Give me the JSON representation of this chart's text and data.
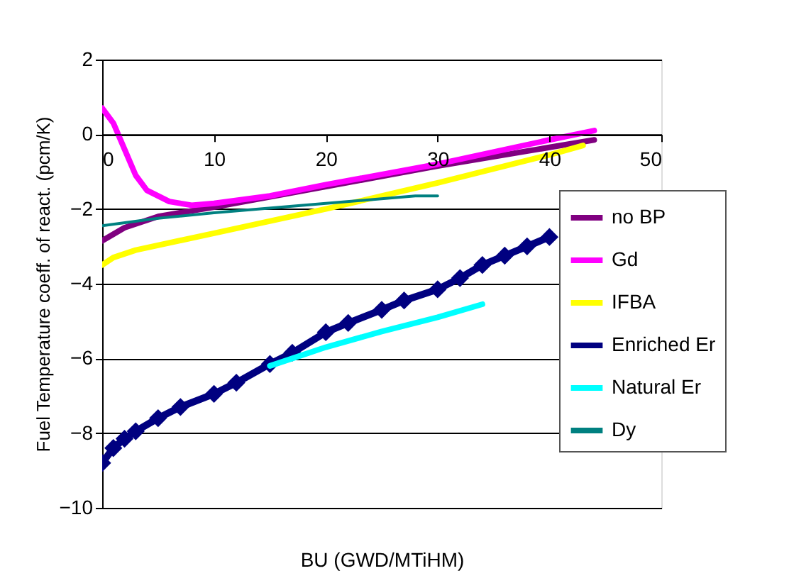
{
  "chart_data": {
    "type": "line",
    "xlabel": "BU (GWD/MTiHM)",
    "ylabel": "Fuel Temperature coeff. of react. (pcm/K)",
    "xlim": [
      0,
      50
    ],
    "xticks": [
      0,
      10,
      20,
      30,
      40,
      50
    ],
    "ylim": [
      -10,
      2
    ],
    "yticks": [
      -10,
      -8,
      -6,
      -4,
      -2,
      0,
      2
    ],
    "grid": "y",
    "legend": "right",
    "series": [
      {
        "name": "no BP",
        "color": "#800080",
        "marker": "none",
        "x": [
          0,
          2,
          5,
          10,
          20,
          30,
          40,
          44
        ],
        "values": [
          -2.85,
          -2.5,
          -2.2,
          -1.95,
          -1.4,
          -0.85,
          -0.35,
          -0.15
        ]
      },
      {
        "name": "Gd",
        "color": "#ff00ff",
        "marker": "none",
        "x": [
          0,
          1,
          2,
          3,
          4,
          6,
          8,
          10,
          15,
          20,
          30,
          40,
          44
        ],
        "values": [
          0.7,
          0.3,
          -0.4,
          -1.1,
          -1.5,
          -1.8,
          -1.9,
          -1.85,
          -1.65,
          -1.35,
          -0.8,
          -0.15,
          0.1
        ]
      },
      {
        "name": "IFBA",
        "color": "#ffff00",
        "marker": "none",
        "x": [
          0,
          1,
          3,
          10,
          20,
          30,
          40,
          43
        ],
        "values": [
          -3.5,
          -3.3,
          -3.1,
          -2.65,
          -2.0,
          -1.3,
          -0.55,
          -0.3
        ]
      },
      {
        "name": "Enriched Er",
        "color": "#000080",
        "marker": "diamond",
        "x": [
          0,
          1,
          2,
          3,
          5,
          7,
          10,
          12,
          15,
          17,
          20,
          22,
          25,
          27,
          30,
          32,
          34,
          36,
          38,
          40
        ],
        "values": [
          -8.8,
          -8.4,
          -8.15,
          -7.95,
          -7.6,
          -7.3,
          -6.95,
          -6.65,
          -6.15,
          -5.85,
          -5.3,
          -5.05,
          -4.7,
          -4.45,
          -4.15,
          -3.85,
          -3.5,
          -3.25,
          -3.0,
          -2.75
        ]
      },
      {
        "name": "Natural Er",
        "color": "#00ffff",
        "marker": "none",
        "x": [
          15,
          17,
          20,
          25,
          30,
          34
        ],
        "values": [
          -6.2,
          -6.0,
          -5.7,
          -5.28,
          -4.9,
          -4.55
        ]
      },
      {
        "name": "Dy",
        "color": "#008080",
        "marker": "none",
        "x": [
          0,
          5,
          10,
          20,
          28,
          30
        ],
        "values": [
          -2.45,
          -2.25,
          -2.1,
          -1.85,
          -1.65,
          -1.65
        ]
      }
    ]
  }
}
